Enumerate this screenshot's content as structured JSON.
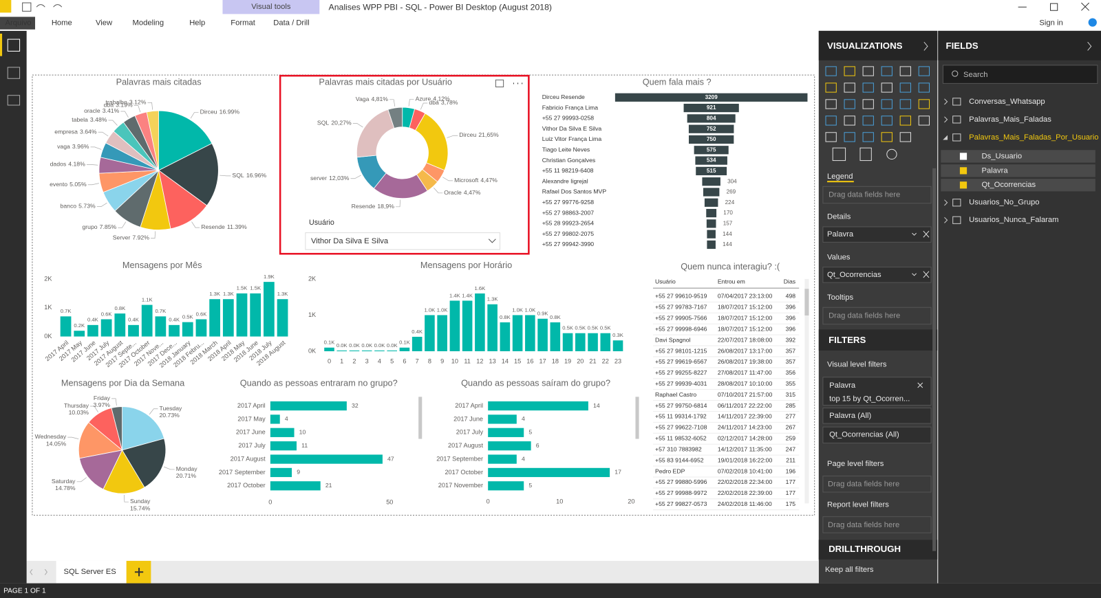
{
  "window": {
    "title": "Analises WPP PBI - SQL - Power BI Desktop (August 2018)",
    "contextual_tab": "Visual tools",
    "sign_in": "Sign in"
  },
  "ribbon": {
    "tabs": [
      "Arquivo",
      "Home",
      "View",
      "Modeling",
      "Help",
      "Format",
      "Data / Drill"
    ]
  },
  "chart_data": [
    {
      "type": "pie",
      "title": "Palavras mais citadas",
      "categories": [
        "Dirceu",
        "SQL",
        "Resende",
        "Server",
        "grupo",
        "banco",
        "evento",
        "dados",
        "vaga",
        "empresa",
        "tabela",
        "oracle",
        "dba",
        "trabalho"
      ],
      "values": [
        16.99,
        16.96,
        11.39,
        7.92,
        7.85,
        5.73,
        5.05,
        4.18,
        3.96,
        3.64,
        3.48,
        3.41,
        3.19,
        3.12
      ],
      "value_labels": [
        "16.99%",
        "16.96%",
        "11.39%",
        "7.92%",
        "7.85%",
        "5.73%",
        "5.05%",
        "4.18%",
        "3.96%",
        "3.64%",
        "3.48%",
        "3.41%",
        "3.19%",
        "3.12%"
      ],
      "colors": [
        "#01B8AA",
        "#374649",
        "#FD625E",
        "#F2C80F",
        "#5F6B6D",
        "#8AD4EB",
        "#FE9666",
        "#A66999",
        "#3599B8",
        "#DFBFBF",
        "#4AC5BB",
        "#5F6B6D",
        "#FB8281",
        "#F4D25A"
      ]
    },
    {
      "type": "donut",
      "title": "Palavras mais citadas por Usuário",
      "categories": [
        "Azure",
        "dba",
        "Dirceu",
        "Microsoft",
        "Oracle",
        "Resende",
        "server",
        "SQL",
        "Vaga"
      ],
      "values": [
        4.12,
        3.78,
        21.65,
        4.47,
        4.47,
        18.9,
        12.03,
        20.27,
        4.81
      ],
      "value_labels": [
        "4,12%",
        "3,78%",
        "21,65%",
        "4,47%",
        "4,47%",
        "18,9%",
        "12,03%",
        "20,27%",
        "4,81%"
      ],
      "colors": [
        "#01B8AA",
        "#FD625E",
        "#F2C80F",
        "#FE9666",
        "#F5B94A",
        "#A66999",
        "#3599B8",
        "#DFBFBF",
        "#748082"
      ]
    },
    {
      "type": "funnel",
      "title": "Quem fala mais ?",
      "categories": [
        "Dirceu Resende",
        "Fabricio França Lima",
        "+55 27 99993-0258",
        "Vithor Da Silva E Silva",
        "Luiz Vitor França Lima",
        "Tiago Leite Neves",
        "Christian Gonçalves",
        "+55 11 98219-6408",
        "Alexandre Iigrejal",
        "Rafael Dos Santos MVP",
        "+55 27 99776-9258",
        "+55 27 98863-2007",
        "+55 28 99923-2654",
        "+55 27 99802-2075",
        "+55 27 99942-3990"
      ],
      "values": [
        3209,
        921,
        804,
        752,
        750,
        575,
        534,
        515,
        304,
        269,
        224,
        170,
        157,
        144,
        144
      ],
      "color": "#374649"
    },
    {
      "type": "bar",
      "title": "Mensagens por Mês",
      "categories": [
        "2017 April",
        "2017 May",
        "2017 June",
        "2017 July",
        "2017 August",
        "2017 Septe...",
        "2017 October",
        "2017 Nove...",
        "2017 Dece...",
        "2018 January",
        "2018 Febru...",
        "2018 March",
        "2018 April",
        "2018 May",
        "2018 June",
        "2018 July",
        "2018 August"
      ],
      "values": [
        700,
        200,
        400,
        600,
        800,
        400,
        1100,
        700,
        400,
        500,
        600,
        1300,
        1300,
        1500,
        1500,
        1900,
        1300
      ],
      "value_labels": [
        "0.7K",
        "0.2K",
        "0.4K",
        "0.6K",
        "0.8K",
        "0.4K",
        "1.1K",
        "0.7K",
        "0.4K",
        "0.5K",
        "0.6K",
        "1.3K",
        "1.3K",
        "1.5K",
        "1.5K",
        "1.9K",
        "1.3K"
      ],
      "color": "#01B8AA",
      "ylim": [
        0,
        2000
      ],
      "yticks": [
        {
          "value": 0,
          "label": "0K"
        },
        {
          "value": 1000,
          "label": "1K"
        },
        {
          "value": 2000,
          "label": "2K"
        }
      ]
    },
    {
      "type": "bar",
      "title": "Mensagens por Horário",
      "categories": [
        "0",
        "1",
        "2",
        "3",
        "4",
        "5",
        "6",
        "7",
        "8",
        "9",
        "10",
        "11",
        "12",
        "13",
        "14",
        "15",
        "16",
        "17",
        "18",
        "19",
        "20",
        "21",
        "22",
        "23"
      ],
      "values": [
        100,
        20,
        20,
        20,
        20,
        20,
        100,
        400,
        1000,
        1000,
        1400,
        1400,
        1600,
        1300,
        800,
        1000,
        1000,
        900,
        800,
        500,
        500,
        500,
        500,
        300
      ],
      "value_labels": [
        "0.1K",
        "0.0K",
        "0.0K",
        "0.0K",
        "0.0K",
        "0.0K",
        "0.1K",
        "0.4K",
        "1.0K",
        "1.0K",
        "1.4K",
        "1.4K",
        "1.6K",
        "1.3K",
        "0.8K",
        "1.0K",
        "1.0K",
        "0.9K",
        "0.8K",
        "0.5K",
        "0.5K",
        "0.5K",
        "0.5K",
        "0.3K"
      ],
      "color": "#01B8AA",
      "ylim": [
        0,
        2000
      ],
      "yticks": [
        {
          "value": 0,
          "label": "0K"
        },
        {
          "value": 1000,
          "label": "1K"
        },
        {
          "value": 2000,
          "label": "2K"
        }
      ]
    },
    {
      "type": "pie",
      "title": "Mensagens por Dia da Semana",
      "categories": [
        "Tuesday",
        "Monday",
        "Sunday",
        "Saturday",
        "Wednesday",
        "Thursday",
        "Friday"
      ],
      "values": [
        20.73,
        20.71,
        15.74,
        14.78,
        14.05,
        10.03,
        3.97
      ],
      "value_labels": [
        "20.73%",
        "20.71%",
        "15.74%",
        "14.78%",
        "14.05%",
        "10.03%",
        "3.97%"
      ],
      "colors": [
        "#8AD4EB",
        "#374649",
        "#F2C80F",
        "#A66999",
        "#FE9666",
        "#FD625E",
        "#5F6B6D"
      ]
    },
    {
      "type": "hbar",
      "title": "Quando as pessoas entraram no grupo?",
      "categories": [
        "2017 April",
        "2017 May",
        "2017 June",
        "2017 July",
        "2017 August",
        "2017 September",
        "2017 October"
      ],
      "values": [
        32,
        4,
        10,
        11,
        47,
        9,
        21
      ],
      "color": "#01B8AA",
      "xlim": [
        0,
        50
      ],
      "xticks": [
        0,
        50
      ]
    },
    {
      "type": "hbar",
      "title": "Quando as pessoas saíram do grupo?",
      "categories": [
        "2017 April",
        "2017 June",
        "2017 July",
        "2017 August",
        "2017 September",
        "2017 October",
        "2017 November"
      ],
      "values": [
        14,
        4,
        5,
        6,
        4,
        17,
        5
      ],
      "color": "#01B8AA",
      "xlim": [
        0,
        20
      ],
      "xticks": [
        0,
        10,
        20
      ]
    }
  ],
  "slicer": {
    "label": "Usuário",
    "value": "Vithor Da Silva E Silva"
  },
  "table": {
    "title": "Quem nunca interagiu? :(",
    "columns": [
      "Usuário",
      "Entrou em",
      "Dias"
    ],
    "rows": [
      [
        "+55 27 99610-9519",
        "07/04/2017 23:13:00",
        498
      ],
      [
        "+55 27 99783-7167",
        "18/07/2017 15:12:00",
        396
      ],
      [
        "+55 27 99905-7566",
        "18/07/2017 15:12:00",
        396
      ],
      [
        "+55 27 99998-6946",
        "18/07/2017 15:12:00",
        396
      ],
      [
        "Davi Spagnol",
        "22/07/2017 18:08:00",
        392
      ],
      [
        "+55 27 98101-1215",
        "26/08/2017 13:17:00",
        357
      ],
      [
        "+55 27 99619-6567",
        "26/08/2017 19:38:00",
        357
      ],
      [
        "+55 27 99255-8227",
        "27/08/2017 11:47:00",
        356
      ],
      [
        "+55 27 99939-4031",
        "28/08/2017 10:10:00",
        355
      ],
      [
        "Raphael Castro",
        "07/10/2017 21:57:00",
        315
      ],
      [
        "+55 27 99750-6814",
        "06/11/2017 22:22:00",
        285
      ],
      [
        "+55 11 99314-1792",
        "14/11/2017 22:39:00",
        277
      ],
      [
        "+55 27 99622-7108",
        "24/11/2017 14:23:00",
        267
      ],
      [
        "+55 11 98532-6052",
        "02/12/2017 14:28:00",
        259
      ],
      [
        "+57 310 7883982",
        "14/12/2017 11:35:00",
        247
      ],
      [
        "+55 83 9144-6952",
        "19/01/2018 16:22:00",
        211
      ],
      [
        "Pedro EDP",
        "07/02/2018 10:41:00",
        196
      ],
      [
        "+55 27 99880-5996",
        "22/02/2018 22:34:00",
        177
      ],
      [
        "+55 27 99988-9972",
        "22/02/2018 22:39:00",
        177
      ],
      [
        "+55 27 99827-0573",
        "24/02/2018 11:46:00",
        175
      ]
    ]
  },
  "visualizations": {
    "title": "VISUALIZATIONS",
    "wells": [
      {
        "label": "Legend",
        "placeholder": "Drag data fields here"
      },
      {
        "label": "Details",
        "field": "Palavra"
      },
      {
        "label": "Values",
        "field": "Qt_Ocorrencias"
      },
      {
        "label": "Tooltips",
        "placeholder": "Drag data fields here"
      }
    ]
  },
  "filters": {
    "title": "FILTERS",
    "visual_level": "Visual level filters",
    "cards": [
      {
        "field": "Palavra",
        "detail": "top 15 by Qt_Ocorren..."
      },
      {
        "field": "Palavra (All)"
      },
      {
        "field": "Qt_Ocorrencias (All)"
      }
    ],
    "page_level": "Page level filters",
    "page_placeholder": "Drag data fields here",
    "report_level": "Report level filters",
    "report_placeholder": "Drag data fields here"
  },
  "drillthrough": {
    "title": "DRILLTHROUGH",
    "keep_all_filters": "Keep all filters"
  },
  "fields": {
    "title": "FIELDS",
    "search": "Search",
    "tables": [
      "Conversas_Whatsapp",
      "Palavras_Mais_Faladas",
      "Palavras_Mais_Faladas_Por_Usuario"
    ],
    "columns": [
      "Ds_Usuario",
      "Palavra",
      "Qt_Ocorrencias"
    ],
    "more_tables": [
      "Usuarios_No_Grupo",
      "Usuarios_Nunca_Falaram"
    ]
  },
  "pages": {
    "tabs": [
      "SQL Server ES"
    ],
    "status": "PAGE 1 OF 1"
  }
}
